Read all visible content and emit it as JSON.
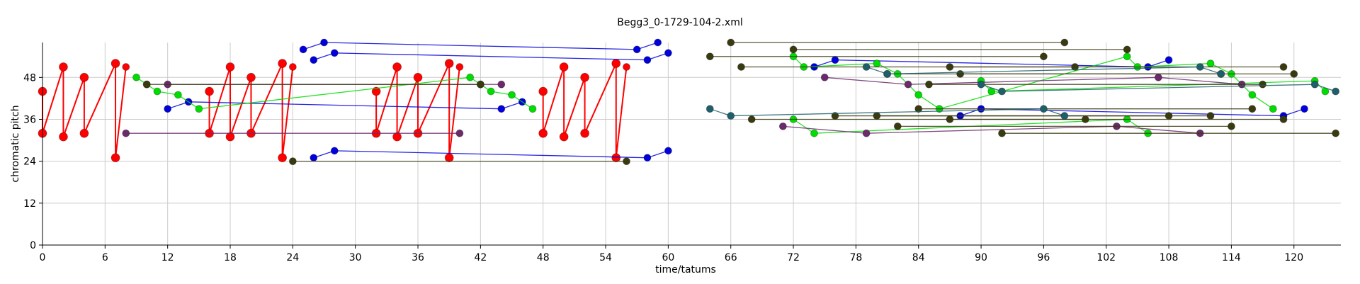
{
  "chart_data": {
    "type": "scatter",
    "title": "Begg3_0-1729-104-2.xml",
    "xlabel": "time/tatums",
    "ylabel": "chromatic pitch",
    "xlim": [
      0,
      124.5
    ],
    "ylim": [
      0,
      58
    ],
    "x_ticks": [
      0,
      6,
      12,
      18,
      24,
      30,
      36,
      42,
      48,
      54,
      60,
      66,
      72,
      78,
      84,
      90,
      96,
      102,
      108,
      114,
      120
    ],
    "y_ticks": [
      0,
      12,
      24,
      36,
      48
    ],
    "grid": true,
    "colors": {
      "red": "#ff0000",
      "blue": "#0000dd",
      "green": "#00dd00",
      "purple": "#6b2a6b",
      "olive": "#3a3a10",
      "teal": "#1e5f6b"
    },
    "series": [
      {
        "color": "red",
        "points": [
          [
            0,
            44
          ],
          [
            0,
            32
          ],
          [
            2,
            51
          ],
          [
            2,
            31
          ],
          [
            4,
            48
          ],
          [
            4,
            32
          ],
          [
            7,
            52
          ],
          [
            7,
            25
          ],
          [
            8,
            51
          ]
        ]
      },
      {
        "color": "red",
        "points": [
          [
            16,
            44
          ],
          [
            16,
            32
          ],
          [
            18,
            51
          ],
          [
            18,
            31
          ],
          [
            20,
            48
          ],
          [
            20,
            32
          ],
          [
            23,
            52
          ],
          [
            23,
            25
          ],
          [
            24,
            51
          ]
        ]
      },
      {
        "color": "red",
        "points": [
          [
            32,
            44
          ],
          [
            32,
            32
          ],
          [
            34,
            51
          ],
          [
            34,
            31
          ],
          [
            36,
            48
          ],
          [
            36,
            32
          ],
          [
            39,
            52
          ],
          [
            39,
            25
          ],
          [
            40,
            51
          ]
        ]
      },
      {
        "color": "red",
        "points": [
          [
            48,
            44
          ],
          [
            48,
            32
          ],
          [
            50,
            51
          ],
          [
            50,
            31
          ],
          [
            52,
            48
          ],
          [
            52,
            32
          ],
          [
            55,
            52
          ],
          [
            55,
            25
          ],
          [
            56,
            51
          ]
        ]
      },
      {
        "color": "blue",
        "points": [
          [
            25,
            56
          ],
          [
            27,
            58
          ],
          [
            57,
            56
          ],
          [
            59,
            58
          ]
        ]
      },
      {
        "color": "blue",
        "points": [
          [
            26,
            53
          ],
          [
            28,
            55
          ],
          [
            58,
            53
          ],
          [
            60,
            55
          ]
        ]
      },
      {
        "color": "blue",
        "points": [
          [
            26,
            25
          ],
          [
            28,
            27
          ],
          [
            58,
            25
          ],
          [
            60,
            27
          ]
        ]
      },
      {
        "color": "blue",
        "points": [
          [
            12,
            39
          ],
          [
            14,
            41
          ],
          [
            44,
            39
          ],
          [
            46,
            41
          ]
        ]
      },
      {
        "color": "blue",
        "points": [
          [
            74,
            51
          ],
          [
            76,
            53
          ],
          [
            106,
            51
          ],
          [
            108,
            53
          ]
        ]
      },
      {
        "color": "blue",
        "points": [
          [
            88,
            37
          ],
          [
            90,
            39
          ],
          [
            119,
            37
          ],
          [
            121,
            39
          ]
        ]
      },
      {
        "color": "green",
        "points": [
          [
            9,
            48
          ],
          [
            10,
            46
          ],
          [
            11,
            44
          ],
          [
            13,
            43
          ],
          [
            15,
            39
          ],
          [
            41,
            48
          ],
          [
            42,
            46
          ],
          [
            43,
            44
          ],
          [
            45,
            43
          ],
          [
            47,
            39
          ]
        ]
      },
      {
        "color": "green",
        "points": [
          [
            72,
            54
          ],
          [
            73,
            51
          ],
          [
            80,
            52
          ],
          [
            82,
            49
          ],
          [
            84,
            43
          ],
          [
            86,
            39
          ],
          [
            104,
            54
          ],
          [
            105,
            51
          ],
          [
            112,
            52
          ],
          [
            114,
            49
          ],
          [
            116,
            43
          ],
          [
            118,
            39
          ]
        ]
      },
      {
        "color": "green",
        "points": [
          [
            72,
            36
          ],
          [
            74,
            32
          ],
          [
            104,
            36
          ],
          [
            106,
            32
          ]
        ]
      },
      {
        "color": "green",
        "points": [
          [
            90,
            47
          ],
          [
            91,
            44
          ],
          [
            122,
            47
          ],
          [
            123,
            44
          ]
        ]
      },
      {
        "color": "purple",
        "points": [
          [
            8,
            32
          ],
          [
            40,
            32
          ]
        ]
      },
      {
        "color": "purple",
        "points": [
          [
            12,
            46
          ],
          [
            44,
            46
          ]
        ]
      },
      {
        "color": "purple",
        "points": [
          [
            71,
            34
          ],
          [
            79,
            32
          ],
          [
            103,
            34
          ],
          [
            111,
            32
          ]
        ]
      },
      {
        "color": "purple",
        "points": [
          [
            75,
            48
          ],
          [
            83,
            46
          ],
          [
            107,
            48
          ],
          [
            115,
            46
          ]
        ]
      },
      {
        "color": "olive",
        "points": [
          [
            10,
            46
          ],
          [
            42,
            46
          ]
        ]
      },
      {
        "color": "olive",
        "points": [
          [
            24,
            24
          ],
          [
            56,
            24
          ]
        ]
      },
      {
        "color": "olive",
        "points": [
          [
            64,
            54
          ],
          [
            96,
            54
          ]
        ]
      },
      {
        "color": "olive",
        "points": [
          [
            66,
            58
          ],
          [
            98,
            58
          ]
        ]
      },
      {
        "color": "olive",
        "points": [
          [
            67,
            51
          ],
          [
            99,
            51
          ]
        ]
      },
      {
        "color": "olive",
        "points": [
          [
            68,
            36
          ],
          [
            100,
            36
          ]
        ]
      },
      {
        "color": "olive",
        "points": [
          [
            72,
            56
          ],
          [
            104,
            56
          ]
        ]
      },
      {
        "color": "olive",
        "points": [
          [
            76,
            37
          ],
          [
            108,
            37
          ]
        ]
      },
      {
        "color": "olive",
        "points": [
          [
            80,
            37
          ],
          [
            112,
            37
          ]
        ]
      },
      {
        "color": "olive",
        "points": [
          [
            81,
            49
          ],
          [
            113,
            49
          ]
        ]
      },
      {
        "color": "olive",
        "points": [
          [
            82,
            34
          ],
          [
            114,
            34
          ]
        ]
      },
      {
        "color": "olive",
        "points": [
          [
            84,
            39
          ],
          [
            116,
            39
          ]
        ]
      },
      {
        "color": "olive",
        "points": [
          [
            85,
            46
          ],
          [
            117,
            46
          ]
        ]
      },
      {
        "color": "olive",
        "points": [
          [
            87,
            51
          ],
          [
            119,
            51
          ]
        ]
      },
      {
        "color": "olive",
        "points": [
          [
            87,
            36
          ],
          [
            119,
            36
          ]
        ]
      },
      {
        "color": "olive",
        "points": [
          [
            88,
            49
          ],
          [
            120,
            49
          ]
        ]
      },
      {
        "color": "olive",
        "points": [
          [
            92,
            32
          ],
          [
            124,
            32
          ]
        ]
      },
      {
        "color": "teal",
        "points": [
          [
            64,
            39
          ],
          [
            66,
            37
          ],
          [
            96,
            39
          ],
          [
            98,
            37
          ]
        ]
      },
      {
        "color": "teal",
        "points": [
          [
            79,
            51
          ],
          [
            81,
            49
          ],
          [
            111,
            51
          ],
          [
            113,
            49
          ]
        ]
      },
      {
        "color": "teal",
        "points": [
          [
            90,
            46
          ],
          [
            92,
            44
          ],
          [
            122,
            46
          ],
          [
            124,
            44
          ]
        ]
      }
    ]
  }
}
